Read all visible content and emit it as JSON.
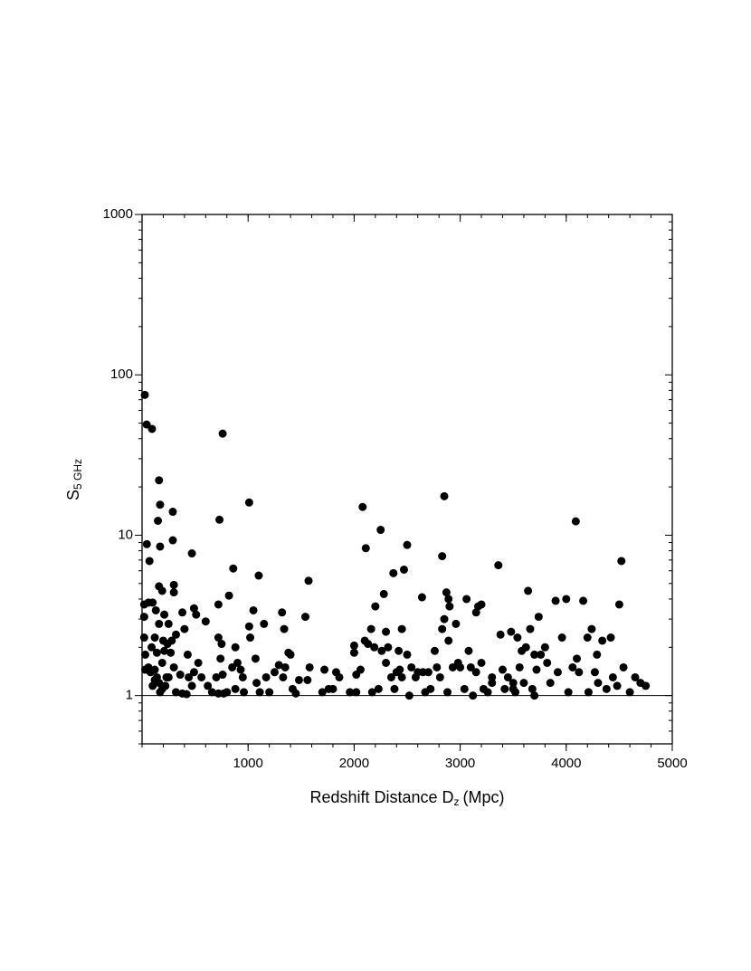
{
  "chart_data": {
    "type": "scatter",
    "x_label": "Redshift Distance D",
    "x_label_sub": "z",
    "x_label_end": "(Mpc)",
    "y_label": "S",
    "y_label_sub": "5 GHz",
    "xlim": [
      0,
      5000
    ],
    "xticks": [
      1000,
      2000,
      3000,
      4000,
      5000
    ],
    "ylim": [
      0.5,
      1000
    ],
    "yticks": [
      1,
      10,
      100,
      1000
    ],
    "y_log": true,
    "hline": 1,
    "color": "#000000",
    "x": [
      26,
      43,
      94,
      160,
      170,
      150,
      290,
      290,
      170,
      45,
      70,
      470,
      20,
      20,
      60,
      100,
      130,
      160,
      190,
      300,
      300,
      160,
      210,
      250,
      280,
      320,
      200,
      240,
      120,
      90,
      20,
      30,
      60,
      30,
      80,
      120,
      140,
      160,
      190,
      220,
      250,
      170,
      210,
      270,
      140,
      190,
      120,
      100,
      230,
      300,
      320,
      380,
      420,
      360,
      380,
      400,
      430,
      440,
      470,
      490,
      510,
      530,
      490,
      560,
      600,
      620,
      660,
      700,
      720,
      720,
      750,
      740,
      760,
      720,
      770,
      800,
      730,
      760,
      820,
      860,
      880,
      850,
      900,
      930,
      880,
      950,
      960,
      1010,
      1010,
      1020,
      1050,
      1070,
      1100,
      1080,
      1110,
      1150,
      1170,
      1200,
      1250,
      1290,
      1320,
      1340,
      1350,
      1330,
      1380,
      1400,
      1420,
      1450,
      1480,
      1540,
      1570,
      1580,
      1560,
      1700,
      1720,
      1760,
      1800,
      1830,
      1860,
      1960,
      2000,
      2000,
      2020,
      2060,
      2020,
      2080,
      2110,
      2100,
      2130,
      2160,
      2170,
      2200,
      2190,
      2230,
      2250,
      2260,
      2280,
      2300,
      2300,
      2320,
      2350,
      2370,
      2380,
      2400,
      2420,
      2430,
      2450,
      2470,
      2500,
      2500,
      2520,
      2540,
      2580,
      2640,
      2650,
      2670,
      2720,
      2760,
      2780,
      2810,
      2830,
      2830,
      2850,
      2850,
      2870,
      2900,
      2890,
      2890,
      2880,
      2930,
      2960,
      2980,
      3000,
      3040,
      3060,
      3080,
      3100,
      3120,
      3150,
      3170,
      3200,
      3220,
      3260,
      3300,
      3360,
      3380,
      3400,
      3420,
      3450,
      3480,
      3500,
      3520,
      3540,
      3560,
      3580,
      3600,
      3620,
      3640,
      3660,
      3680,
      3700,
      3720,
      3740,
      3760,
      3800,
      3820,
      3850,
      3900,
      3920,
      3960,
      4000,
      4020,
      4060,
      4090,
      4100,
      4120,
      4160,
      4200,
      4210,
      4240,
      4270,
      4290,
      4300,
      4340,
      4380,
      4420,
      4440,
      4480,
      4500,
      4520,
      4540,
      4600,
      4650,
      4700,
      4750,
      3200,
      3700,
      3500,
      3300,
      3150,
      2700,
      2600,
      2450
    ],
    "values": [
      75,
      49,
      46,
      22,
      15.5,
      12.3,
      14,
      9.3,
      8.5,
      8.8,
      6.9,
      7.7,
      3.7,
      3.1,
      3.8,
      3.8,
      3.4,
      4.8,
      4.5,
      4.9,
      4.4,
      2.8,
      3.2,
      2.8,
      2.2,
      2.4,
      2.2,
      2.1,
      2.3,
      2.0,
      2.3,
      1.8,
      1.5,
      1.45,
      1.4,
      1.45,
      1.3,
      1.2,
      1.1,
      1.15,
      1.3,
      1.05,
      1.9,
      1.85,
      1.85,
      1.6,
      1.25,
      1.15,
      1.3,
      1.5,
      1.05,
      1.03,
      1.02,
      1.35,
      3.3,
      2.6,
      1.8,
      1.3,
      1.15,
      3.5,
      3.2,
      1.6,
      1.4,
      1.3,
      2.9,
      1.15,
      1.05,
      1.3,
      3.7,
      2.3,
      2.1,
      1.7,
      1.35,
      1.03,
      1.03,
      1.05,
      12.5,
      43,
      4.2,
      6.2,
      2.0,
      1.5,
      1.6,
      1.45,
      1.1,
      1.3,
      1.05,
      16,
      2.7,
      2.3,
      3.4,
      1.7,
      5.6,
      1.2,
      1.05,
      2.8,
      1.3,
      1.05,
      1.4,
      1.55,
      3.3,
      2.6,
      1.5,
      1.3,
      1.85,
      1.8,
      1.1,
      1.03,
      1.25,
      3.1,
      5.2,
      1.5,
      1.25,
      1.05,
      1.45,
      1.1,
      1.1,
      1.4,
      1.3,
      1.05,
      2.05,
      1.85,
      1.35,
      1.45,
      1.05,
      15,
      8.3,
      2.2,
      2.1,
      2.6,
      1.05,
      3.6,
      2.0,
      1.1,
      10.8,
      1.9,
      4.3,
      2.5,
      1.6,
      2.0,
      1.3,
      5.8,
      1.1,
      1.4,
      1.9,
      1.45,
      2.6,
      6.1,
      8.7,
      1.8,
      1.0,
      1.5,
      1.3,
      4.1,
      1.4,
      1.05,
      1.1,
      1.9,
      1.5,
      1.3,
      7.4,
      2.6,
      17.5,
      3.0,
      4.4,
      3.6,
      4.0,
      2.2,
      1.05,
      1.5,
      2.8,
      1.6,
      1.5,
      1.1,
      4.0,
      1.9,
      1.5,
      1.0,
      3.3,
      3.6,
      1.6,
      1.1,
      1.05,
      1.3,
      6.5,
      2.4,
      1.45,
      1.1,
      1.3,
      2.5,
      1.2,
      1.05,
      2.3,
      1.5,
      1.9,
      1.2,
      2.0,
      4.5,
      2.6,
      1.1,
      1.8,
      1.45,
      3.1,
      1.8,
      2.0,
      1.6,
      1.2,
      3.9,
      1.4,
      2.3,
      4.0,
      1.05,
      1.5,
      12.2,
      1.7,
      1.4,
      3.9,
      2.3,
      1.05,
      2.6,
      1.4,
      1.8,
      1.2,
      2.2,
      1.1,
      2.3,
      1.3,
      1.15,
      3.7,
      6.9,
      1.5,
      1.05,
      1.3,
      1.2,
      1.15,
      3.7,
      1.0,
      1.1,
      1.2,
      1.4,
      1.4,
      1.4,
      1.3
    ]
  }
}
